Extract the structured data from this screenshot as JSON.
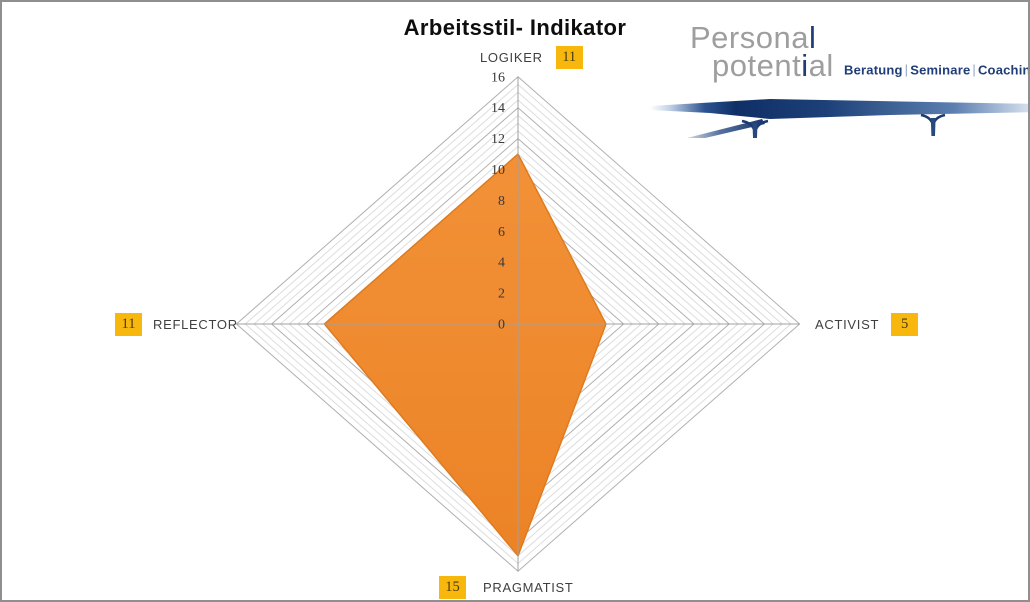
{
  "title": "Arbeitsstil- Indikator",
  "logo": {
    "word1_gray": "Persona",
    "word1_accent": "l",
    "word2_gray1": "potent",
    "word2_accent": "i",
    "word2_gray2": "al",
    "tagline": [
      "Beratung",
      "Seminare",
      "Coaching"
    ],
    "separator": "|",
    "mark": "©",
    "colors": {
      "gray": "#9e9e9e",
      "navy": "#203d78"
    }
  },
  "axis_labels": {
    "top": {
      "label": "LOGIKER",
      "value": "11"
    },
    "right": {
      "label": "ACTIVIST",
      "value": "5"
    },
    "bottom": {
      "label": "PRAGMATIST",
      "value": "15"
    },
    "left": {
      "label": "REFLECTOR",
      "value": "11"
    }
  },
  "badge_color": "#f8b70d",
  "chart_data": {
    "type": "radar",
    "title": "Arbeitsstil- Indikator",
    "categories": [
      "LOGIKER",
      "ACTIVIST",
      "PRAGMATIST",
      "REFLECTOR"
    ],
    "values": [
      11,
      5,
      15,
      11
    ],
    "rmin": 0,
    "rmax": 16,
    "major_unit": 2,
    "minor_unit": 0.5,
    "tick_labels": [
      0,
      2,
      4,
      6,
      8,
      10,
      12,
      14,
      16
    ],
    "grid": "on",
    "legend": "none",
    "fill_top": "#f29138",
    "fill_bottom": "#ec8326",
    "stroke": "#df7b1e",
    "grid_major": "#b0b0b0",
    "grid_minor": "#dddddd",
    "axis_color": "#a0a0a0",
    "tick_color": "#3a3a3a"
  }
}
